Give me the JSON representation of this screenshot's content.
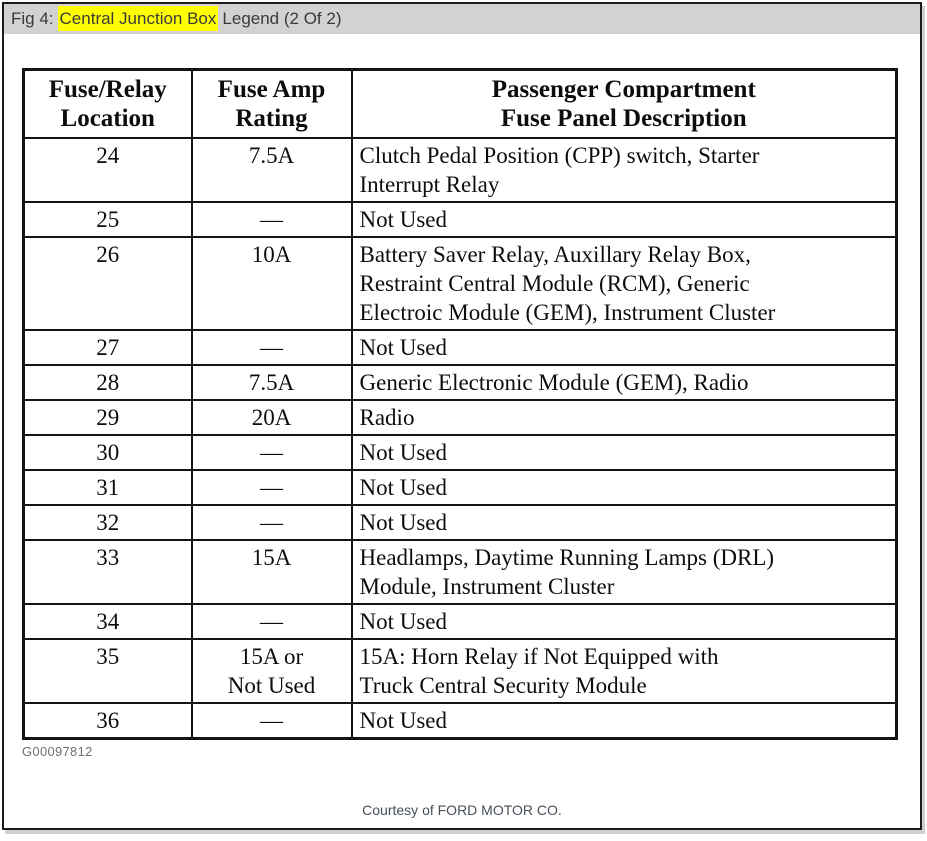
{
  "window": {
    "title_prefix": "Fig 4:",
    "title_highlight": "Central Junction Box",
    "title_suffix": "Legend (2 Of 2)",
    "highlight_color": "#ffff00",
    "titlebar_color": "#d2d2d2"
  },
  "table": {
    "columns": [
      {
        "label": "Fuse/Relay\nLocation"
      },
      {
        "label": "Fuse Amp\nRating"
      },
      {
        "label": "Passenger Compartment\nFuse Panel Description"
      }
    ],
    "rows": [
      {
        "location": "24",
        "rating": "7.5A",
        "description": "Clutch Pedal Position (CPP) switch, Starter\nInterrupt Relay"
      },
      {
        "location": "25",
        "rating": "—",
        "description": "Not Used"
      },
      {
        "location": "26",
        "rating": "10A",
        "description": "Battery Saver Relay, Auxillary Relay Box,\nRestraint Central Module (RCM), Generic\nElectroic Module (GEM), Instrument Cluster"
      },
      {
        "location": "27",
        "rating": "—",
        "description": "Not Used"
      },
      {
        "location": "28",
        "rating": "7.5A",
        "description": "Generic Electronic Module (GEM), Radio"
      },
      {
        "location": "29",
        "rating": "20A",
        "description": "Radio"
      },
      {
        "location": "30",
        "rating": "—",
        "description": "Not Used"
      },
      {
        "location": "31",
        "rating": "—",
        "description": "Not Used"
      },
      {
        "location": "32",
        "rating": "—",
        "description": "Not Used"
      },
      {
        "location": "33",
        "rating": "15A",
        "description": "Headlamps, Daytime Running Lamps (DRL)\nModule, Instrument Cluster"
      },
      {
        "location": "34",
        "rating": "—",
        "description": "Not Used"
      },
      {
        "location": "35",
        "rating": "15A or\nNot Used",
        "description": "15A: Horn Relay if Not Equipped with\nTruck Central Security Module"
      },
      {
        "location": "36",
        "rating": "—",
        "description": "Not Used"
      }
    ]
  },
  "footer": {
    "figure_id": "G00097812",
    "courtesy": "Courtesy of FORD MOTOR CO."
  }
}
